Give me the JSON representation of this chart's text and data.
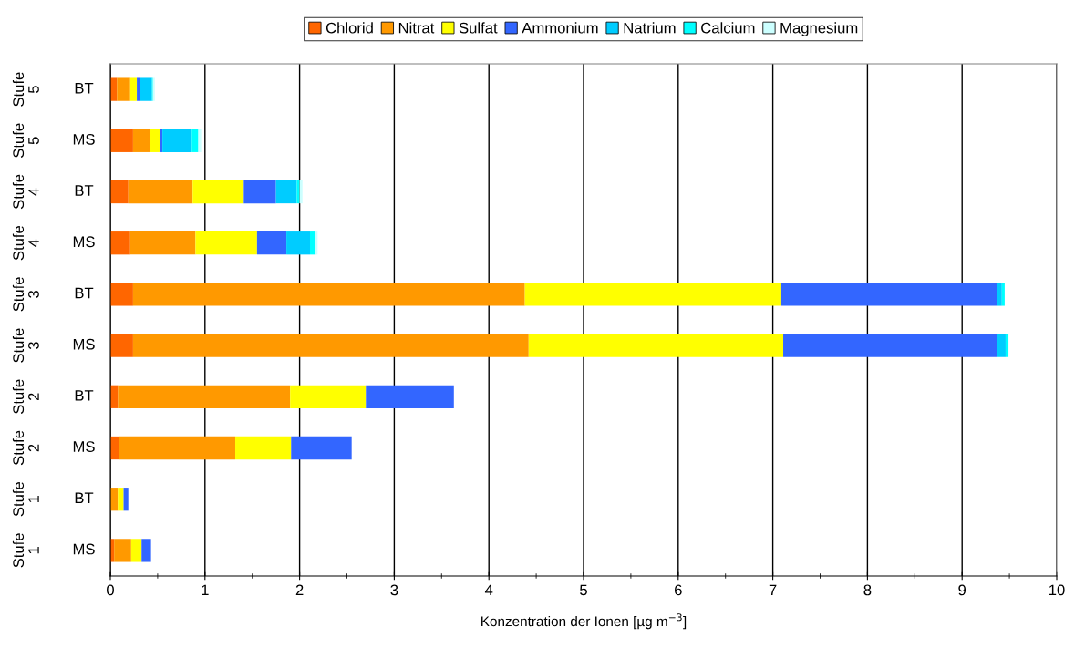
{
  "chart_data": {
    "type": "bar",
    "orientation": "horizontal",
    "stacked": true,
    "xlabel": "Konzentration der Ionen [µg m$^{−3}$]",
    "categories": [
      "Stufe 5\nBT",
      "Stufe 5\nMS",
      "Stufe 4\nBT",
      "Stufe 4\nMS",
      "Stufe 3\nBT",
      "Stufe 3\nMS",
      "Stufe 2\nBT",
      "Stufe 2\nMS",
      "Stufe 1\nBT",
      "Stufe 1\nMS"
    ],
    "series": [
      {
        "name": "Chlorid",
        "color": "#ff6600",
        "values": [
          0.07,
          0.24,
          0.19,
          0.21,
          0.24,
          0.24,
          0.08,
          0.09,
          0,
          0.04
        ]
      },
      {
        "name": "Nitrat",
        "color": "#ff9900",
        "values": [
          0.14,
          0.18,
          0.68,
          0.69,
          4.14,
          4.18,
          1.82,
          1.23,
          0.08,
          0.18
        ]
      },
      {
        "name": "Sulfat",
        "color": "#ffff00",
        "values": [
          0.07,
          0.1,
          0.54,
          0.65,
          2.71,
          2.69,
          0.8,
          0.59,
          0.06,
          0.11
        ]
      },
      {
        "name": "Ammonium",
        "color": "#3366ff",
        "values": [
          0.03,
          0.03,
          0.34,
          0.31,
          2.28,
          2.26,
          0.93,
          0.64,
          0.05,
          0.1
        ]
      },
      {
        "name": "Natrium",
        "color": "#00ccff",
        "values": [
          0.13,
          0.31,
          0.22,
          0.25,
          0.05,
          0.09,
          0,
          0,
          0,
          0
        ]
      },
      {
        "name": "Calcium",
        "color": "#00ffff",
        "values": [
          0.01,
          0.07,
          0.03,
          0.06,
          0.03,
          0.03,
          0,
          0,
          0,
          0
        ]
      },
      {
        "name": "Magnesium",
        "color": "#ccffff",
        "values": [
          0.02,
          0.03,
          0.03,
          0.02,
          0,
          0,
          0,
          0,
          0,
          0
        ]
      }
    ],
    "xlim": [
      0,
      10
    ],
    "xticks": [
      0,
      {
        "value": 0.5,
        "label": null
      },
      1,
      {
        "value": 1.5,
        "label": null
      },
      2,
      {
        "value": 2.5,
        "label": null
      },
      3,
      {
        "value": 3.5,
        "label": null
      },
      4,
      {
        "value": 4.5,
        "label": null
      },
      5,
      {
        "value": 5.5,
        "label": null
      },
      6,
      {
        "value": 6.5,
        "label": null
      },
      7,
      {
        "value": 7.5,
        "label": null
      },
      8,
      {
        "value": 8.5,
        "label": null
      },
      9,
      {
        "value": 9.5,
        "label": null
      },
      10
    ],
    "grid": "x",
    "legend": "top"
  }
}
